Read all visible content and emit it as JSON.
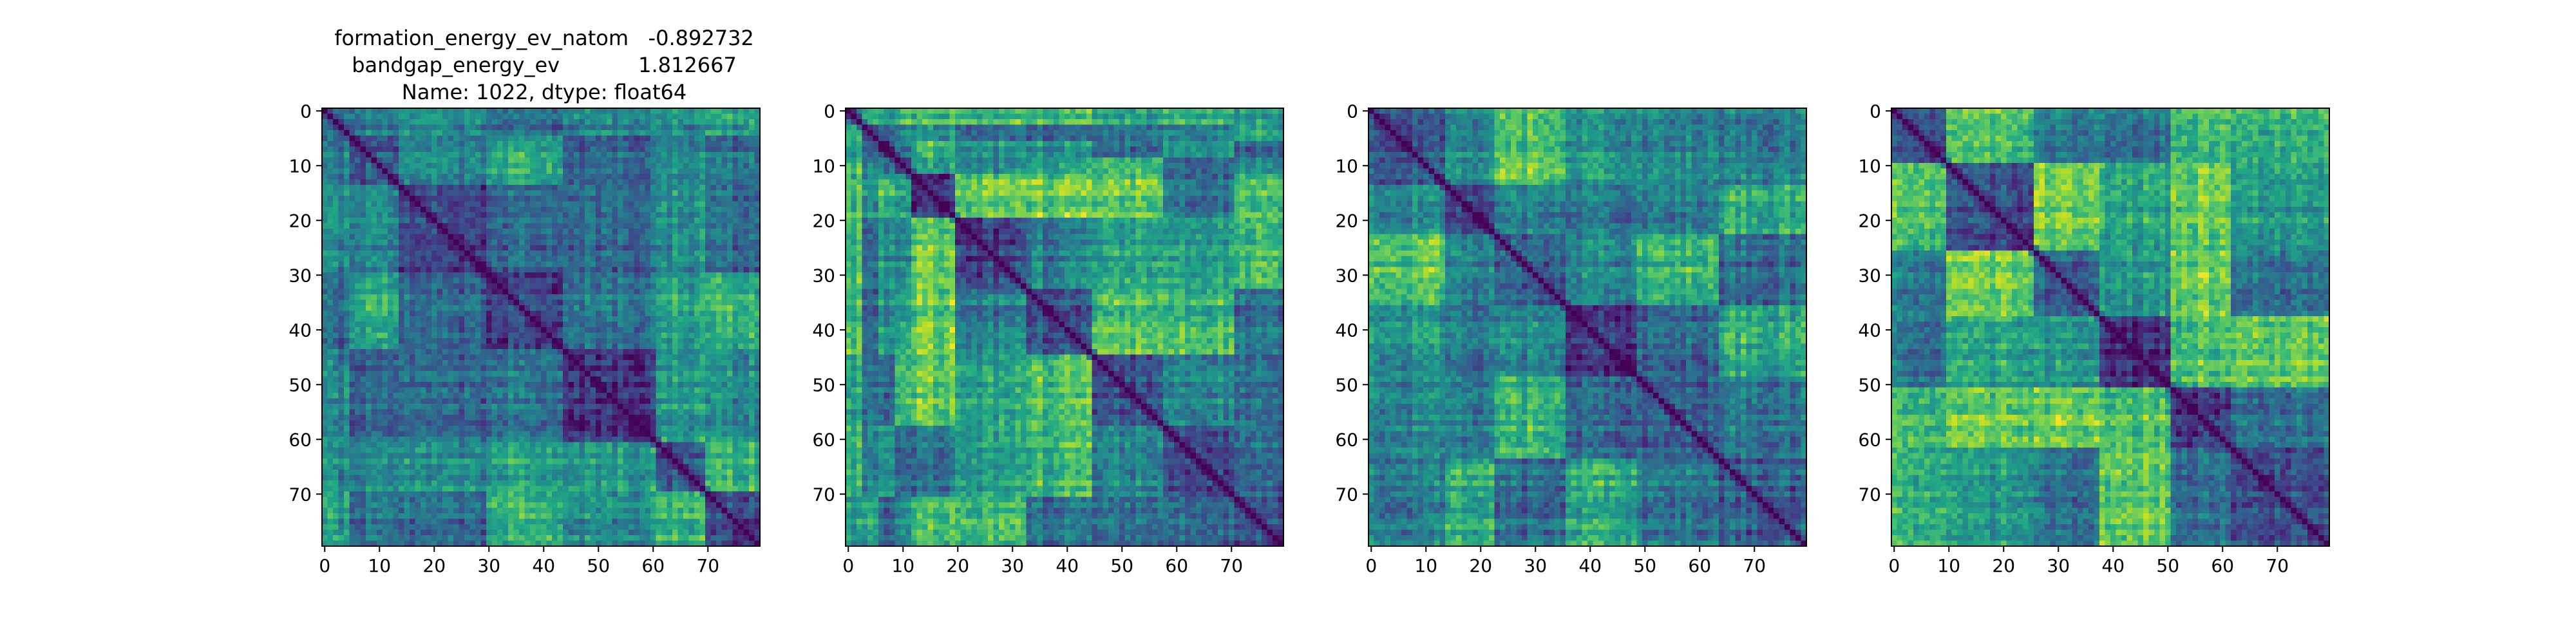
{
  "figure": {
    "title_lines": [
      "formation_energy_ev_natom   -0.892732",
      "bandgap_energy_ev            1.812667",
      "Name: 1022, dtype: float64"
    ]
  },
  "chart_data": [
    {
      "type": "heatmap",
      "n": 80,
      "colormap": "viridis",
      "diagonal_value": 0,
      "xticks": [
        0,
        10,
        20,
        30,
        40,
        50,
        60,
        70
      ],
      "yticks": [
        0,
        10,
        20,
        30,
        40,
        50,
        60,
        70
      ],
      "xlim": [
        -0.5,
        79.5
      ],
      "ylim": [
        79.5,
        -0.5
      ],
      "block_boundaries": [
        0,
        5,
        14,
        30,
        44,
        61,
        70,
        80
      ],
      "note_values": "pairwise distance matrix, values 0-1 (dark=low, yellow=high)"
    },
    {
      "type": "heatmap",
      "n": 80,
      "colormap": "viridis",
      "diagonal_value": 0,
      "xticks": [
        0,
        10,
        20,
        30,
        40,
        50,
        60,
        70
      ],
      "yticks": [
        0,
        10,
        20,
        30,
        40,
        50,
        60,
        70
      ],
      "xlim": [
        -0.5,
        79.5
      ],
      "ylim": [
        79.5,
        -0.5
      ],
      "block_boundaries": [
        0,
        3,
        6,
        9,
        12,
        20,
        33,
        45,
        58,
        71,
        80
      ]
    },
    {
      "type": "heatmap",
      "n": 80,
      "colormap": "viridis",
      "diagonal_value": 0,
      "xticks": [
        0,
        10,
        20,
        30,
        40,
        50,
        60,
        70
      ],
      "yticks": [
        0,
        10,
        20,
        30,
        40,
        50,
        60,
        70
      ],
      "xlim": [
        -0.5,
        79.5
      ],
      "ylim": [
        79.5,
        -0.5
      ],
      "block_boundaries": [
        0,
        14,
        23,
        36,
        49,
        64,
        80
      ]
    },
    {
      "type": "heatmap",
      "n": 80,
      "colormap": "viridis",
      "diagonal_value": 0,
      "xticks": [
        0,
        10,
        20,
        30,
        40,
        50,
        60,
        70
      ],
      "yticks": [
        0,
        10,
        20,
        30,
        40,
        50,
        60,
        70
      ],
      "xlim": [
        -0.5,
        79.5
      ],
      "ylim": [
        79.5,
        -0.5
      ],
      "block_boundaries": [
        0,
        10,
        26,
        38,
        51,
        62,
        80
      ]
    }
  ]
}
